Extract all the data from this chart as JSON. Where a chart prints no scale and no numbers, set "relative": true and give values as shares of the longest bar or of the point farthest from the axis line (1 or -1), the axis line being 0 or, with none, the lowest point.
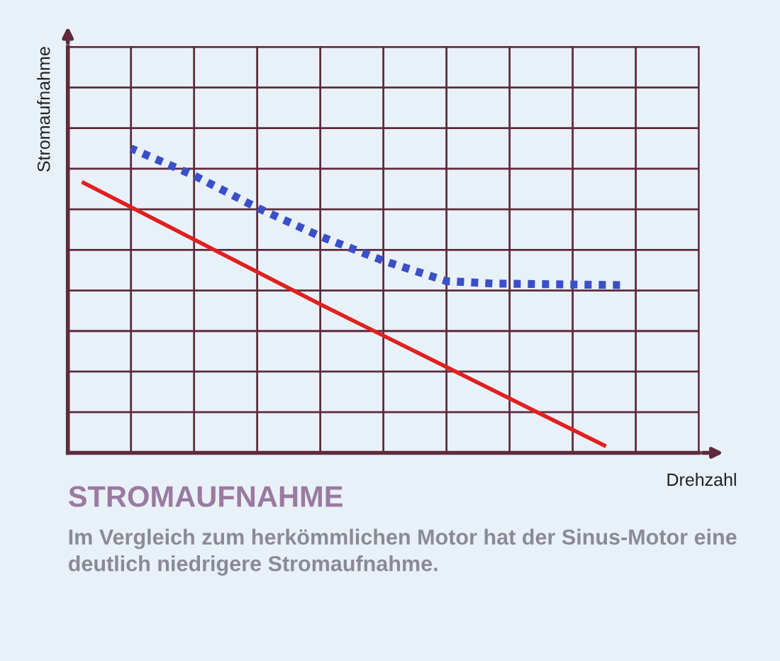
{
  "chart_data": {
    "type": "line",
    "relative": true,
    "title": "STROMAUFNAHME",
    "subtitle": "Im Vergleich zum herkömmlichen Motor hat der Sinus-Motor eine deutlich niedrigere Stromaufnahme.",
    "xlabel": "Drehzahl",
    "ylabel": "Stromaufnahme",
    "categories": [
      null,
      null,
      null,
      null,
      null,
      null,
      null,
      null,
      null,
      null,
      null,
      null,
      null,
      null,
      null,
      null,
      null,
      null,
      null,
      null,
      null,
      null,
      null,
      null,
      null,
      null,
      null,
      null,
      null,
      null,
      null,
      null,
      null,
      null,
      null,
      null,
      null,
      null,
      null,
      null,
      null
    ],
    "grid": true,
    "series": [
      {
        "color": "#3a4fc8",
        "line_style": "dotted",
        "values": [
          null,
          null,
          null,
          null,
          1.0,
          null,
          null,
          null,
          0.911,
          null,
          null,
          null,
          0.805,
          null,
          null,
          null,
          0.711,
          null,
          null,
          null,
          0.631,
          null,
          null,
          null,
          0.564,
          null,
          null,
          0.556,
          null,
          null,
          null,
          null,
          null,
          null,
          null,
          0.551,
          null,
          null,
          null,
          null,
          null
        ]
      },
      {
        "color": "#e02020",
        "line_style": "solid",
        "values": [
          null,
          0.887,
          null,
          null,
          null,
          null,
          null,
          null,
          null,
          null,
          null,
          null,
          null,
          null,
          null,
          null,
          0.488,
          null,
          null,
          null,
          null,
          null,
          null,
          null,
          null,
          null,
          null,
          null,
          null,
          null,
          null,
          null,
          null,
          null,
          0.024,
          null,
          null,
          null,
          null,
          null,
          null
        ]
      }
    ]
  }
}
